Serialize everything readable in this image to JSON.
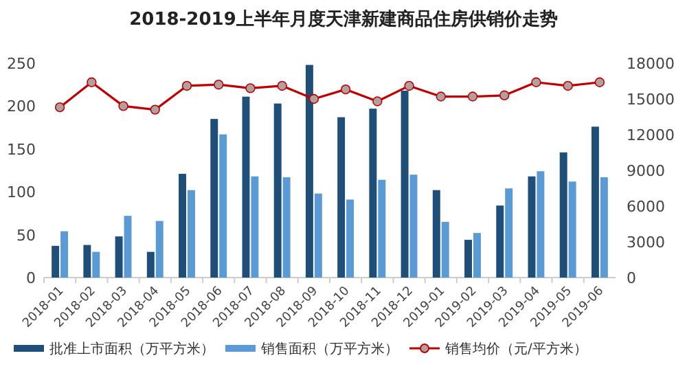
{
  "chart_data": {
    "type": "bar",
    "title": "2018-2019上半年月度天津新建商品住房供销价走势",
    "categories": [
      "2018-01",
      "2018-02",
      "2018-03",
      "2018-04",
      "2018-05",
      "2018-06",
      "2018-07",
      "2018-08",
      "2018-09",
      "2018-10",
      "2018-11",
      "2018-12",
      "2019-01",
      "2019-02",
      "2019-03",
      "2019-04",
      "2019-05",
      "2019-06"
    ],
    "series": [
      {
        "name": "批准上市面积（万平方米）",
        "color": "#1f4e79",
        "values": [
          37,
          38,
          48,
          30,
          121,
          185,
          211,
          203,
          248,
          187,
          197,
          218,
          102,
          44,
          84,
          118,
          146,
          176
        ]
      },
      {
        "name": "销售面积（万平方米）",
        "color": "#5b9bd5",
        "values": [
          54,
          30,
          72,
          66,
          102,
          167,
          118,
          117,
          98,
          91,
          114,
          120,
          65,
          52,
          104,
          124,
          112,
          117
        ]
      },
      {
        "name": "销售均价（元/平方米）",
        "type": "line",
        "axis": "y2",
        "color": "#c00000",
        "values": [
          14300,
          16400,
          14400,
          14100,
          16100,
          16200,
          15900,
          16100,
          15000,
          15800,
          14800,
          16100,
          15200,
          15200,
          15300,
          16400,
          16100,
          16400
        ]
      }
    ],
    "ylim": [
      0,
      250
    ],
    "yticks": [
      0,
      50,
      100,
      150,
      200,
      250
    ],
    "y2lim": [
      0,
      18000
    ],
    "y2ticks": [
      0,
      3000,
      6000,
      9000,
      12000,
      15000,
      18000
    ],
    "marker": "circle",
    "legend": "bottom"
  }
}
